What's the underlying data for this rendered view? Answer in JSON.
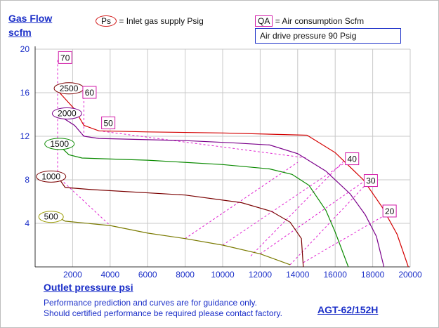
{
  "header": {
    "y_title_1": "Gas Flow",
    "y_title_2": "scfm",
    "key_ps_symbol": "Ps",
    "key_ps_text": "= Inlet gas supply  Psig",
    "key_qa_symbol": "QA",
    "key_qa_text": "= Air consumption  Scfm",
    "air_drive": "Air drive pressure  90 Psig"
  },
  "footer": {
    "x_title": "Outlet pressure   psi",
    "note_1": "Performance prediction and curves are for guidance only.",
    "note_2": "Should certified performance be required please contact factory.",
    "model": "AGT-62/152H"
  },
  "chart_data": {
    "type": "line",
    "xlabel": "Outlet pressure   psi",
    "ylabel": "Gas Flow scfm",
    "xlim": [
      0,
      20000
    ],
    "ylim": [
      0,
      20
    ],
    "xticks": [
      2000,
      4000,
      6000,
      8000,
      10000,
      12000,
      14000,
      16000,
      18000,
      20000
    ],
    "yticks": [
      4,
      8,
      12,
      16,
      20
    ],
    "grid": true,
    "colors": {
      "axis_text": "#1a2ec8",
      "qa_lines": "#e020d0",
      "qa_label_border": "#d21aa8",
      "ps_label_border": "#d21a1a",
      "frame": "#bdbdbd"
    },
    "series": [
      {
        "name": "2500",
        "color": "#d40000",
        "label_at": [
          1800,
          16.4
        ],
        "points": [
          [
            1200,
            16.2
          ],
          [
            2100,
            14.5
          ],
          [
            2600,
            13.0
          ],
          [
            3400,
            12.5
          ],
          [
            6000,
            12.4
          ],
          [
            10000,
            12.3
          ],
          [
            14500,
            12.1
          ],
          [
            16000,
            10.5
          ],
          [
            17500,
            8.0
          ],
          [
            18500,
            5.5
          ],
          [
            19300,
            3.0
          ],
          [
            19900,
            0
          ]
        ]
      },
      {
        "name": "2000",
        "color": "#7a008a",
        "label_at": [
          1700,
          14.1
        ],
        "points": [
          [
            1200,
            14.0
          ],
          [
            2100,
            13.0
          ],
          [
            2600,
            12.0
          ],
          [
            3400,
            11.8
          ],
          [
            8000,
            11.6
          ],
          [
            10500,
            11.4
          ],
          [
            12500,
            11.2
          ],
          [
            14000,
            10.4
          ],
          [
            15500,
            8.8
          ],
          [
            16800,
            6.7
          ],
          [
            17600,
            4.8
          ],
          [
            18200,
            2.8
          ],
          [
            18600,
            0
          ]
        ]
      },
      {
        "name": "1500",
        "color": "#0a8a00",
        "label_at": [
          1300,
          11.3
        ],
        "points": [
          [
            1200,
            11.3
          ],
          [
            1800,
            10.3
          ],
          [
            2500,
            10.0
          ],
          [
            6000,
            9.8
          ],
          [
            10000,
            9.4
          ],
          [
            12500,
            9.0
          ],
          [
            13700,
            8.5
          ],
          [
            14600,
            7.5
          ],
          [
            15500,
            5.2
          ],
          [
            16000,
            3.2
          ],
          [
            16700,
            0
          ]
        ]
      },
      {
        "name": "1000",
        "color": "#7a0000",
        "label_at": [
          850,
          8.3
        ],
        "points": [
          [
            1200,
            8.3
          ],
          [
            1600,
            7.3
          ],
          [
            3000,
            7.1
          ],
          [
            8000,
            6.6
          ],
          [
            11000,
            5.9
          ],
          [
            12600,
            5.1
          ],
          [
            13600,
            4.1
          ],
          [
            14200,
            2.6
          ],
          [
            14300,
            0
          ]
        ]
      },
      {
        "name": "500",
        "color": "#7a7a00",
        "label_at": [
          850,
          4.6
        ],
        "points": [
          [
            1200,
            4.6
          ],
          [
            1600,
            4.2
          ],
          [
            4000,
            3.8
          ],
          [
            6000,
            3.1
          ],
          [
            8000,
            2.6
          ],
          [
            10000,
            2.0
          ],
          [
            12000,
            1.2
          ],
          [
            13600,
            0.2
          ]
        ]
      }
    ],
    "air_consumption_lines": [
      {
        "name": "70",
        "label_at": [
          1600,
          19.2
        ],
        "points": [
          [
            1200,
            19.0
          ],
          [
            1200,
            8.3
          ]
        ]
      },
      {
        "name": "60",
        "label_at": [
          2900,
          16.0
        ],
        "points": [
          [
            2600,
            16.0
          ],
          [
            2600,
            12.0
          ]
        ]
      },
      {
        "name": "50",
        "label_at": [
          3900,
          13.2
        ],
        "points": [
          [
            1200,
            8.3
          ],
          [
            4000,
            3.8
          ],
          [
            3400,
            12.5
          ],
          [
            14500,
            10.0
          ],
          [
            14200,
            10.6
          ]
        ]
      },
      {
        "name": "40",
        "label_at": [
          16900,
          9.9
        ],
        "points": [
          [
            8000,
            2.6
          ],
          [
            14000,
            9.6
          ],
          [
            10000,
            2.0
          ],
          [
            16800,
            9.9
          ],
          [
            11500,
            1.0
          ],
          [
            16500,
            9.8
          ]
        ]
      },
      {
        "name": "30",
        "label_at": [
          17900,
          7.9
        ],
        "points": [
          [
            12000,
            1.2
          ],
          [
            17500,
            7.8
          ],
          [
            13600,
            0.2
          ],
          [
            17600,
            7.5
          ]
        ]
      },
      {
        "name": "20",
        "label_at": [
          18900,
          5.1
        ],
        "points": [
          [
            14300,
            0.4
          ],
          [
            18900,
            5.0
          ]
        ]
      }
    ]
  }
}
